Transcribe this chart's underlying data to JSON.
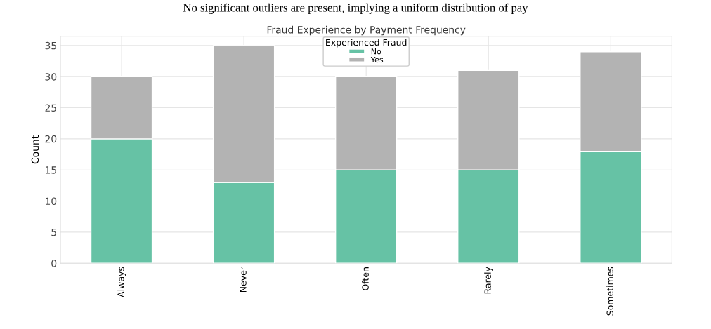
{
  "chart_data": {
    "type": "bar",
    "title": "Fraud Experience by Payment Frequency",
    "ylabel": "Count",
    "legend_title": "Experienced Fraud",
    "annotations": [
      "No significant outliers are present, implying a uniform distribution of pay"
    ],
    "categories": [
      "Always",
      "Never",
      "Often",
      "Rarely",
      "Sometimes"
    ],
    "series": [
      {
        "name": "No",
        "color": "#66c2a5",
        "values": [
          20,
          13,
          15,
          15,
          18
        ]
      },
      {
        "name": "Yes",
        "color": "#b3b3b3",
        "values": [
          10,
          22,
          15,
          16,
          16
        ]
      }
    ],
    "stacked": true,
    "ylim": [
      0,
      36.5
    ],
    "yticks": [
      0,
      5,
      10,
      15,
      20,
      25,
      30,
      35
    ],
    "grid": true,
    "legend": "top"
  }
}
